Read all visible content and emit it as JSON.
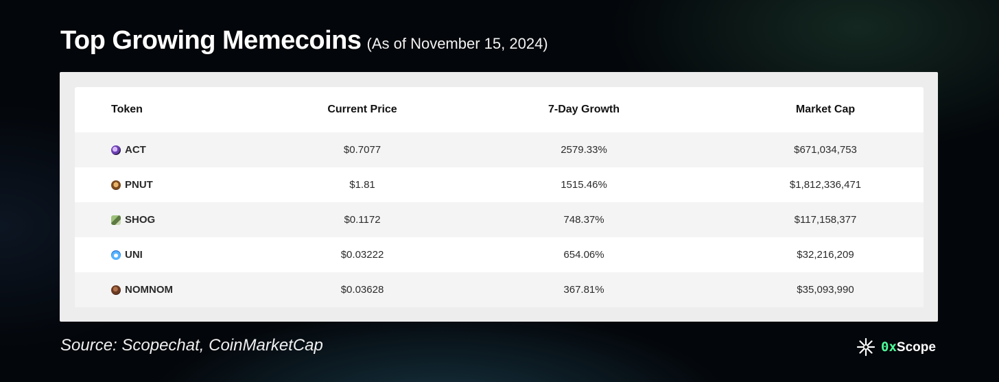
{
  "header": {
    "title": "Top Growing Memecoins",
    "subtitle": "(As of November 15, 2024)"
  },
  "chart_data": {
    "type": "table",
    "columns": [
      "Token",
      "Current Price",
      "7-Day Growth",
      "Market Cap"
    ],
    "rows": [
      {
        "token": "ACT",
        "icon": "act-token-icon",
        "price": "$0.7077",
        "growth": "2579.33%",
        "market_cap": "$671,034,753"
      },
      {
        "token": "PNUT",
        "icon": "pnut-token-icon",
        "price": "$1.81",
        "growth": "1515.46%",
        "market_cap": "$1,812,336,471"
      },
      {
        "token": "SHOG",
        "icon": "shog-token-icon",
        "price": "$0.1172",
        "growth": "748.37%",
        "market_cap": "$117,158,377"
      },
      {
        "token": "UNI",
        "icon": "uni-token-icon",
        "price": "$0.03222",
        "growth": "654.06%",
        "market_cap": "$32,216,209"
      },
      {
        "token": "NOMNOM",
        "icon": "nomnom-token-icon",
        "price": "$0.03628",
        "growth": "367.81%",
        "market_cap": "$35,093,990"
      }
    ]
  },
  "footer": {
    "source": "Source: Scopechat, CoinMarketCap",
    "brand_prefix": "0x",
    "brand_name": "Scope"
  },
  "colors": {
    "background": "#03060a",
    "panel": "#ededee",
    "brand_accent": "#4dff9a"
  }
}
